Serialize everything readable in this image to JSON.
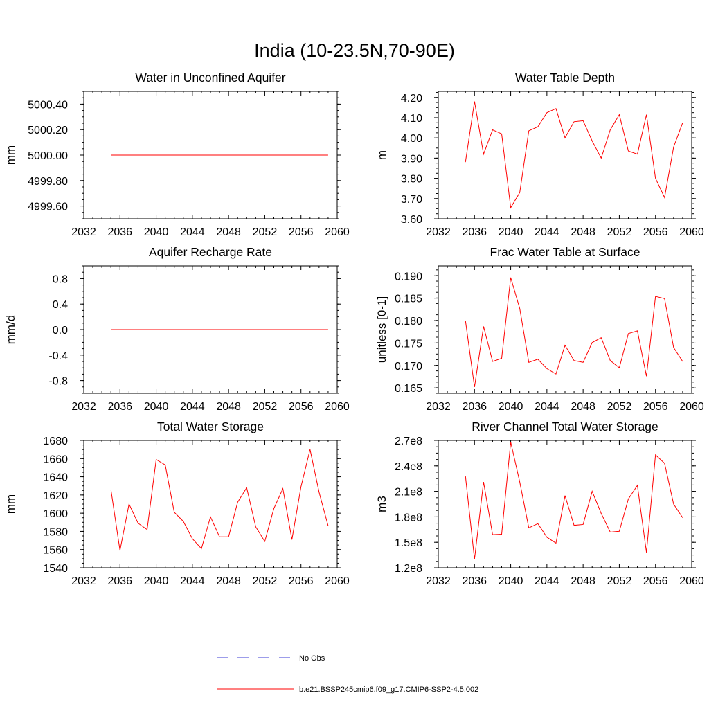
{
  "figure": {
    "title": "India (10-23.5N,70-90E)"
  },
  "legend": {
    "entries": [
      {
        "label": "No Obs",
        "color": "#3b3bd6",
        "style": "dashed"
      },
      {
        "label": "b.e21.BSSP245cmip6.f09_g17.CMIP6-SSP2-4.5.002",
        "color": "#ff0000",
        "style": "solid"
      }
    ]
  },
  "chart_data": [
    {
      "id": "p1",
      "type": "line",
      "title": "Water in Unconfined Aquifer",
      "ylabel": "mm",
      "xlim": [
        2032,
        2060
      ],
      "ylim": [
        4999.5,
        5000.5
      ],
      "xticks": [
        2032,
        2036,
        2040,
        2044,
        2048,
        2052,
        2056,
        2060
      ],
      "yticks": [
        4999.6,
        4999.8,
        5000.0,
        5000.2,
        5000.4
      ],
      "ytick_labels": [
        "4999.60",
        "4999.80",
        "5000.00",
        "5000.20",
        "5000.40"
      ],
      "series_color": "#ff0000",
      "x": [
        2035,
        2036,
        2037,
        2038,
        2039,
        2040,
        2041,
        2042,
        2043,
        2044,
        2045,
        2046,
        2047,
        2048,
        2049,
        2050,
        2051,
        2052,
        2053,
        2054,
        2055,
        2056,
        2057,
        2058,
        2059
      ],
      "y": [
        5000,
        5000,
        5000,
        5000,
        5000,
        5000,
        5000,
        5000,
        5000,
        5000,
        5000,
        5000,
        5000,
        5000,
        5000,
        5000,
        5000,
        5000,
        5000,
        5000,
        5000,
        5000,
        5000,
        5000,
        5000
      ]
    },
    {
      "id": "p2",
      "type": "line",
      "title": "Water Table Depth",
      "ylabel": "m",
      "xlim": [
        2032,
        2060
      ],
      "ylim": [
        3.6,
        4.23
      ],
      "xticks": [
        2032,
        2036,
        2040,
        2044,
        2048,
        2052,
        2056,
        2060
      ],
      "yticks": [
        3.6,
        3.7,
        3.8,
        3.9,
        4.0,
        4.1,
        4.2
      ],
      "ytick_labels": [
        "3.60",
        "3.70",
        "3.80",
        "3.90",
        "4.00",
        "4.10",
        "4.20"
      ],
      "series_color": "#ff0000",
      "x": [
        2035,
        2036,
        2037,
        2038,
        2039,
        2040,
        2041,
        2042,
        2043,
        2044,
        2045,
        2046,
        2047,
        2048,
        2049,
        2050,
        2051,
        2052,
        2053,
        2054,
        2055,
        2056,
        2057,
        2058,
        2059
      ],
      "y": [
        3.88,
        4.18,
        3.92,
        4.04,
        4.02,
        3.655,
        3.73,
        4.035,
        4.055,
        4.125,
        4.145,
        4.0,
        4.08,
        4.085,
        3.985,
        3.9,
        4.04,
        4.115,
        3.935,
        3.92,
        4.115,
        3.8,
        3.705,
        3.955,
        4.075
      ]
    },
    {
      "id": "p3",
      "type": "line",
      "title": "Aquifer Recharge Rate",
      "ylabel": "mm/d",
      "xlim": [
        2032,
        2060
      ],
      "ylim": [
        -1.0,
        1.0
      ],
      "xticks": [
        2032,
        2036,
        2040,
        2044,
        2048,
        2052,
        2056,
        2060
      ],
      "yticks": [
        -0.8,
        -0.4,
        0.0,
        0.4,
        0.8
      ],
      "ytick_labels": [
        "-0.8",
        "-0.4",
        "0.0",
        "0.4",
        "0.8"
      ],
      "series_color": "#ff0000",
      "x": [
        2035,
        2036,
        2037,
        2038,
        2039,
        2040,
        2041,
        2042,
        2043,
        2044,
        2045,
        2046,
        2047,
        2048,
        2049,
        2050,
        2051,
        2052,
        2053,
        2054,
        2055,
        2056,
        2057,
        2058,
        2059
      ],
      "y": [
        0,
        0,
        0,
        0,
        0,
        0,
        0,
        0,
        0,
        0,
        0,
        0,
        0,
        0,
        0,
        0,
        0,
        0,
        0,
        0,
        0,
        0,
        0,
        0,
        0
      ]
    },
    {
      "id": "p4",
      "type": "line",
      "title": "Frac Water Table at Surface",
      "ylabel": "unitless [0-1]",
      "xlim": [
        2032,
        2060
      ],
      "ylim": [
        0.1638,
        0.1922
      ],
      "xticks": [
        2032,
        2036,
        2040,
        2044,
        2048,
        2052,
        2056,
        2060
      ],
      "yticks": [
        0.165,
        0.17,
        0.175,
        0.18,
        0.185,
        0.19
      ],
      "ytick_labels": [
        "0.165",
        "0.170",
        "0.175",
        "0.180",
        "0.185",
        "0.190"
      ],
      "series_color": "#ff0000",
      "x": [
        2035,
        2036,
        2037,
        2038,
        2039,
        2040,
        2041,
        2042,
        2043,
        2044,
        2045,
        2046,
        2047,
        2048,
        2049,
        2050,
        2051,
        2052,
        2053,
        2054,
        2055,
        2056,
        2057,
        2058,
        2059
      ],
      "y": [
        0.18,
        0.1652,
        0.1787,
        0.1709,
        0.1716,
        0.1896,
        0.1827,
        0.1707,
        0.1714,
        0.1693,
        0.1681,
        0.1745,
        0.1711,
        0.1707,
        0.1751,
        0.1762,
        0.1711,
        0.1695,
        0.1771,
        0.1777,
        0.1676,
        0.1854,
        0.1849,
        0.174,
        0.1709
      ]
    },
    {
      "id": "p5",
      "type": "line",
      "title": "Total Water Storage",
      "ylabel": "mm",
      "xlim": [
        2032,
        2060
      ],
      "ylim": [
        1540,
        1680
      ],
      "xticks": [
        2032,
        2036,
        2040,
        2044,
        2048,
        2052,
        2056,
        2060
      ],
      "yticks": [
        1540,
        1560,
        1580,
        1600,
        1620,
        1640,
        1660,
        1680
      ],
      "ytick_labels": [
        "1540",
        "1560",
        "1580",
        "1600",
        "1620",
        "1640",
        "1660",
        "1680"
      ],
      "series_color": "#ff0000",
      "x": [
        2035,
        2036,
        2037,
        2038,
        2039,
        2040,
        2041,
        2042,
        2043,
        2044,
        2045,
        2046,
        2047,
        2048,
        2049,
        2050,
        2051,
        2052,
        2053,
        2054,
        2055,
        2056,
        2057,
        2058,
        2059
      ],
      "y": [
        1626,
        1559,
        1610,
        1589,
        1582,
        1659,
        1653,
        1601,
        1591,
        1572,
        1561,
        1596,
        1574,
        1574,
        1612,
        1628,
        1585,
        1569,
        1605,
        1627,
        1571,
        1629,
        1670,
        1623,
        1586
      ]
    },
    {
      "id": "p6",
      "type": "line",
      "title": "River Channel Total Water Storage",
      "ylabel": "m3",
      "xlim": [
        2032,
        2060
      ],
      "ylim": [
        120000000,
        270000000
      ],
      "xticks": [
        2032,
        2036,
        2040,
        2044,
        2048,
        2052,
        2056,
        2060
      ],
      "yticks": [
        120000000,
        150000000,
        180000000,
        210000000,
        240000000,
        270000000
      ],
      "ytick_labels": [
        "1.2e8",
        "1.5e8",
        "1.8e8",
        "2.1e8",
        "2.4e8",
        "2.7e8"
      ],
      "series_color": "#ff0000",
      "x": [
        2035,
        2036,
        2037,
        2038,
        2039,
        2040,
        2041,
        2042,
        2043,
        2044,
        2045,
        2046,
        2047,
        2048,
        2049,
        2050,
        2051,
        2052,
        2053,
        2054,
        2055,
        2056,
        2057,
        2058,
        2059
      ],
      "y": [
        228000000,
        130000000,
        221000000,
        159000000,
        159500000,
        268000000,
        221000000,
        167000000,
        172000000,
        156000000,
        149000000,
        205000000,
        170000000,
        171000000,
        210000000,
        184000000,
        162000000,
        163000000,
        201000000,
        217000000,
        138000000,
        253000000,
        243000000,
        195000000,
        179000000
      ]
    }
  ]
}
